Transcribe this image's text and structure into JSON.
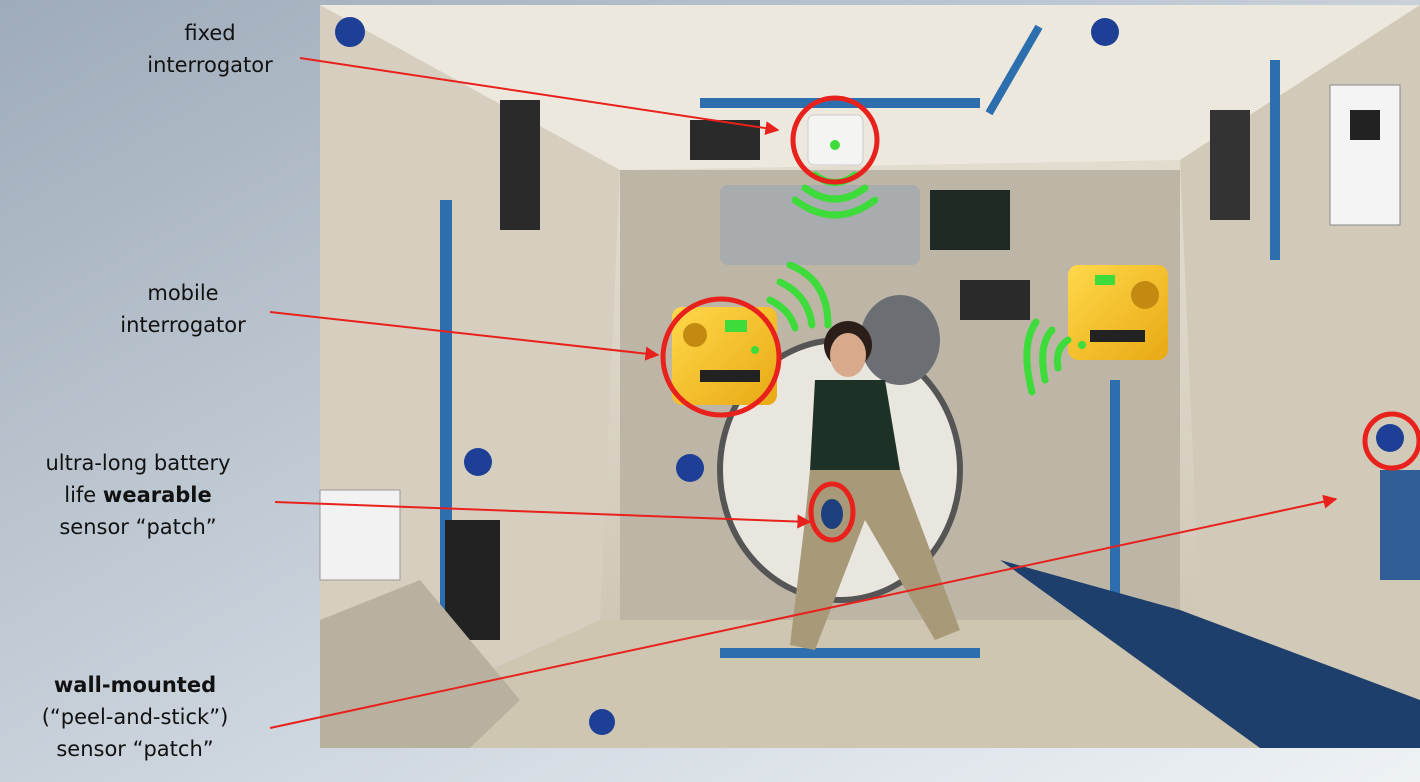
{
  "annotations": [
    {
      "lines": [
        [
          {
            "text": "fixed"
          }
        ],
        [
          {
            "text": "interrogator"
          }
        ]
      ]
    },
    {
      "lines": [
        [
          {
            "text": "mobile"
          }
        ],
        [
          {
            "text": "interrogator"
          }
        ]
      ]
    },
    {
      "lines": [
        [
          {
            "text": "ultra-long battery"
          }
        ],
        [
          {
            "text": "life "
          },
          {
            "text": "wearable",
            "bold": true
          }
        ],
        [
          {
            "text": "sensor “patch”"
          }
        ]
      ]
    },
    {
      "lines": [
        [
          {
            "text": "wall-mounted",
            "bold": true
          }
        ],
        [
          {
            "text": "(“peel-and-stick”)"
          }
        ],
        [
          {
            "text": "sensor “patch”"
          }
        ]
      ]
    }
  ]
}
